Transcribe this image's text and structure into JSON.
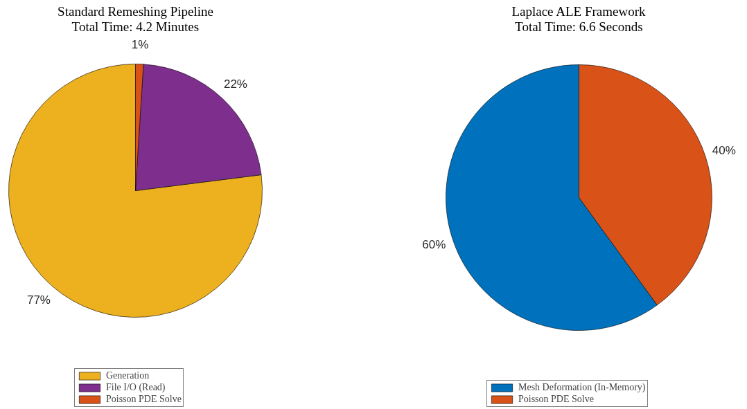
{
  "chart_data": [
    {
      "type": "pie",
      "title": "Standard Remeshing Pipeline",
      "subtitle": "Total Time: 4.2 Minutes",
      "categories": [
        "Generation",
        "File I/O (Read)",
        "Poisson PDE Solve"
      ],
      "values": [
        77,
        22,
        1
      ],
      "colors": [
        "#edb120",
        "#7e2f8e",
        "#d95319"
      ],
      "value_labels": [
        "77%",
        "22%",
        "1%"
      ],
      "legend": "bottom"
    },
    {
      "type": "pie",
      "title": "Laplace ALE Framework",
      "subtitle": "Total Time: 6.6 Seconds",
      "categories": [
        "Mesh Deformation (In-Memory)",
        "Poisson PDE Solve"
      ],
      "values": [
        60,
        40
      ],
      "colors": [
        "#0072bd",
        "#d95319"
      ],
      "value_labels": [
        "60%",
        "40%"
      ],
      "legend": "bottom"
    }
  ]
}
